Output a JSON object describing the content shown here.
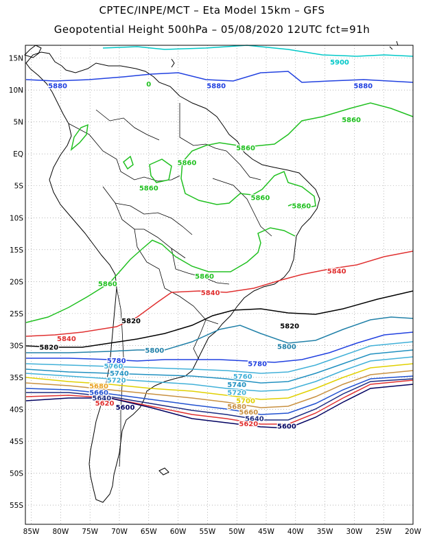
{
  "title_line1": "CPTEC/INPE/MCT  –   Eta Model 15km  –  GFS",
  "title_line2": "Geopotential Height 500hPa – 05/08/2020 12UTC fct=91h",
  "axes": {
    "lat_labels": [
      "15N",
      "10N",
      "5N",
      "EQ",
      "5S",
      "10S",
      "15S",
      "20S",
      "25S",
      "30S",
      "35S",
      "40S",
      "45S",
      "50S",
      "55S"
    ],
    "lat_values": [
      15,
      10,
      5,
      0,
      -5,
      -10,
      -15,
      -20,
      -25,
      -30,
      -35,
      -40,
      -45,
      -50,
      -55
    ],
    "lon_labels": [
      "85W",
      "80W",
      "75W",
      "70W",
      "65W",
      "60W",
      "55W",
      "50W",
      "45W",
      "40W",
      "35W",
      "30W",
      "25W",
      "20W"
    ],
    "lon_values": [
      -85,
      -80,
      -75,
      -70,
      -65,
      -60,
      -55,
      -50,
      -45,
      -40,
      -35,
      -30,
      -25,
      -20
    ],
    "lat_range": [
      -58,
      17
    ],
    "lon_range": [
      -86,
      -20
    ],
    "grid": "dotted"
  },
  "contour_labels": [
    {
      "text": "5900",
      "lon": -32.5,
      "lat": 14.4,
      "color": "#00c8c8"
    },
    {
      "text": "5880",
      "lon": -80.5,
      "lat": 10.7,
      "color": "#2040e0"
    },
    {
      "text": "5880",
      "lon": -53.5,
      "lat": 10.7,
      "color": "#2040e0"
    },
    {
      "text": "5880",
      "lon": -28.5,
      "lat": 10.7,
      "color": "#2040e0"
    },
    {
      "text": "0",
      "lon": -65.0,
      "lat": 11.0,
      "color": "#20c020"
    },
    {
      "text": "5860",
      "lon": -30.5,
      "lat": 5.4,
      "color": "#20c020"
    },
    {
      "text": "5860",
      "lon": -48.5,
      "lat": 1.0,
      "color": "#20c020"
    },
    {
      "text": "5860",
      "lon": -58.5,
      "lat": -1.3,
      "color": "#20c020"
    },
    {
      "text": "5860",
      "lon": -65.0,
      "lat": -5.3,
      "color": "#20c020"
    },
    {
      "text": "5860",
      "lon": -46.0,
      "lat": -6.8,
      "color": "#20c020"
    },
    {
      "text": "5860",
      "lon": -39.0,
      "lat": -8.1,
      "color": "#20c020"
    },
    {
      "text": "5860",
      "lon": -55.5,
      "lat": -19.1,
      "color": "#20c020"
    },
    {
      "text": "5860",
      "lon": -72.0,
      "lat": -20.3,
      "color": "#20c020"
    },
    {
      "text": "5840",
      "lon": -33.0,
      "lat": -18.3,
      "color": "#e03030"
    },
    {
      "text": "5840",
      "lon": -54.5,
      "lat": -21.7,
      "color": "#e03030"
    },
    {
      "text": "5840",
      "lon": -79.0,
      "lat": -28.9,
      "color": "#e03030"
    },
    {
      "text": "5820",
      "lon": -68.0,
      "lat": -26.1,
      "color": "#000000"
    },
    {
      "text": "5820",
      "lon": -82.0,
      "lat": -30.2,
      "color": "#000000"
    },
    {
      "text": "5820",
      "lon": -41.0,
      "lat": -26.9,
      "color": "#000000"
    },
    {
      "text": "5800",
      "lon": -64.0,
      "lat": -30.7,
      "color": "#2080a8"
    },
    {
      "text": "5800",
      "lon": -41.5,
      "lat": -30.1,
      "color": "#2080a8"
    },
    {
      "text": "5780",
      "lon": -70.5,
      "lat": -32.3,
      "color": "#2040e0"
    },
    {
      "text": "5780",
      "lon": -46.5,
      "lat": -32.8,
      "color": "#2040e0"
    },
    {
      "text": "5760",
      "lon": -71.0,
      "lat": -33.2,
      "color": "#40b0d8"
    },
    {
      "text": "5760",
      "lon": -49.0,
      "lat": -34.8,
      "color": "#40b0d8"
    },
    {
      "text": "5740",
      "lon": -70.0,
      "lat": -34.3,
      "color": "#2090c0"
    },
    {
      "text": "5740",
      "lon": -50.0,
      "lat": -36.1,
      "color": "#2090c0"
    },
    {
      "text": "5720",
      "lon": -70.5,
      "lat": -35.4,
      "color": "#40b0d8"
    },
    {
      "text": "5720",
      "lon": -50.0,
      "lat": -37.3,
      "color": "#40b0d8"
    },
    {
      "text": "5700",
      "lon": -48.5,
      "lat": -38.6,
      "color": "#e0d000"
    },
    {
      "text": "5680",
      "lon": -73.5,
      "lat": -36.3,
      "color": "#e8a020"
    },
    {
      "text": "5680",
      "lon": -50.0,
      "lat": -39.5,
      "color": "#c89040"
    },
    {
      "text": "5660",
      "lon": -73.5,
      "lat": -37.3,
      "color": "#2050d0"
    },
    {
      "text": "5660",
      "lon": -48.0,
      "lat": -40.4,
      "color": "#c89040"
    },
    {
      "text": "5640",
      "lon": -73.0,
      "lat": -38.2,
      "color": "#1a2a80"
    },
    {
      "text": "5640",
      "lon": -47.0,
      "lat": -41.4,
      "color": "#1a2a80"
    },
    {
      "text": "5620",
      "lon": -72.5,
      "lat": -39.0,
      "color": "#e03030"
    },
    {
      "text": "5620",
      "lon": -48.0,
      "lat": -42.2,
      "color": "#e03030"
    },
    {
      "text": "5600",
      "lon": -69.0,
      "lat": -39.6,
      "color": "#000060"
    },
    {
      "text": "5600",
      "lon": -41.5,
      "lat": -42.6,
      "color": "#000060"
    }
  ],
  "colors": {
    "c5900": "#00c8c8",
    "c5880": "#2040e0",
    "c5860": "#20c020",
    "c5840": "#e03030",
    "c5820": "#000000",
    "c5800": "#2080a8",
    "c5780": "#2040e0",
    "c5760": "#40b0d8",
    "c5740": "#2090c0",
    "c5720": "#40b0d8",
    "c5700": "#e0d000",
    "c5680": "#c89040",
    "c5660": "#2050d0",
    "c5640": "#1a2a80",
    "c5620": "#e03030",
    "c5600": "#000060"
  }
}
